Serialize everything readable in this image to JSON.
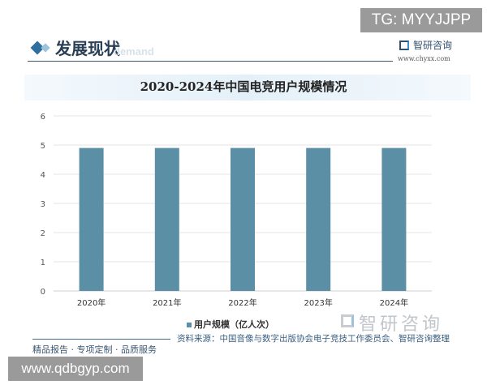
{
  "watermark_tag": "TG: MYYJJPP",
  "section": {
    "title": "发展现状",
    "subtitle": "demand"
  },
  "brand": {
    "name": "智研咨询",
    "url": "www.chyxx.com"
  },
  "footer": {
    "source": "资料来源：中国音像与数字出版协会电子竞技工作委员会、智研咨询整理",
    "slogan": "精品报告 · 专项定制 · 品质服务",
    "site_badge": "www.qdbgyp.com"
  },
  "colors": {
    "bar": "#5b8fa6",
    "accent": "#2e6f9e"
  },
  "chart_data": {
    "type": "bar",
    "title": "2020-2024年中国电竞用户规模情况",
    "categories": [
      "2020年",
      "2021年",
      "2022年",
      "2023年",
      "2024年"
    ],
    "series": [
      {
        "name": "用户规模（亿人次）",
        "values": [
          4.9,
          4.9,
          4.9,
          4.9,
          4.9
        ]
      }
    ],
    "ylim": [
      0,
      6
    ],
    "yticks": [
      "0",
      "1",
      "2",
      "3",
      "4",
      "5",
      "6"
    ],
    "grid": true,
    "legend": "bottom"
  }
}
